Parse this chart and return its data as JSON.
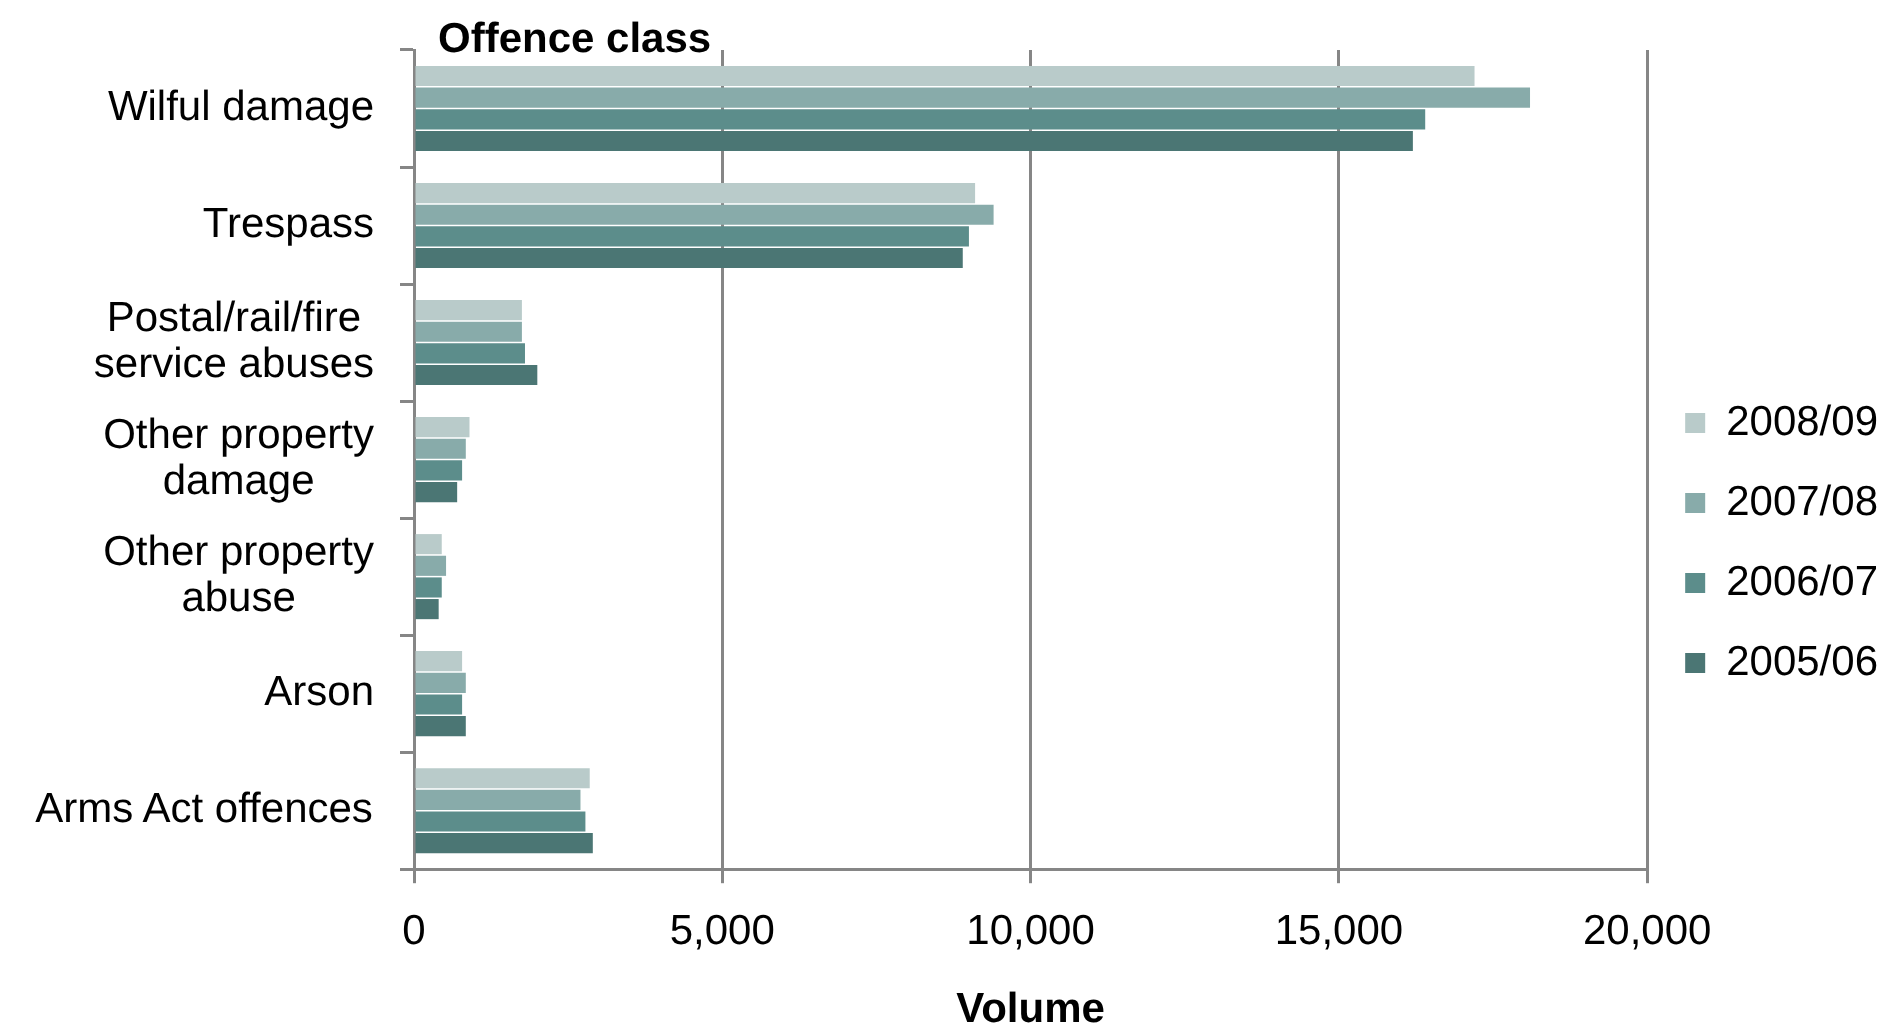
{
  "chart_data": {
    "type": "bar",
    "orientation": "horizontal",
    "xlabel": "Volume",
    "ylabel": "Offence class",
    "categories": [
      "Wilful damage",
      "Trespass",
      "Postal/rail/fire service abuses",
      "Other property damage",
      "Other property abuse",
      "Arson",
      "Arms Act offences"
    ],
    "series": [
      {
        "name": "2008/09",
        "color": "#b9cbca",
        "values": [
          17200,
          9100,
          1750,
          900,
          450,
          780,
          2850
        ]
      },
      {
        "name": "2007/08",
        "color": "#88abaa",
        "values": [
          18100,
          9400,
          1750,
          840,
          520,
          840,
          2700
        ]
      },
      {
        "name": "2006/07",
        "color": "#5c8d8b",
        "values": [
          16400,
          9000,
          1800,
          780,
          450,
          780,
          2780
        ]
      },
      {
        "name": "2005/06",
        "color": "#4b7674",
        "values": [
          16200,
          8900,
          2000,
          700,
          400,
          840,
          2900
        ]
      }
    ],
    "xlim": [
      0,
      20000
    ],
    "xticks": [
      0,
      {
        "value": 5000,
        "label": "5,000"
      },
      {
        "value": 10000,
        "label": "10,000"
      },
      {
        "value": 15000,
        "label": "15,000"
      },
      {
        "value": 20000,
        "label": "20,000"
      }
    ],
    "grid": "x",
    "legend": "right"
  }
}
